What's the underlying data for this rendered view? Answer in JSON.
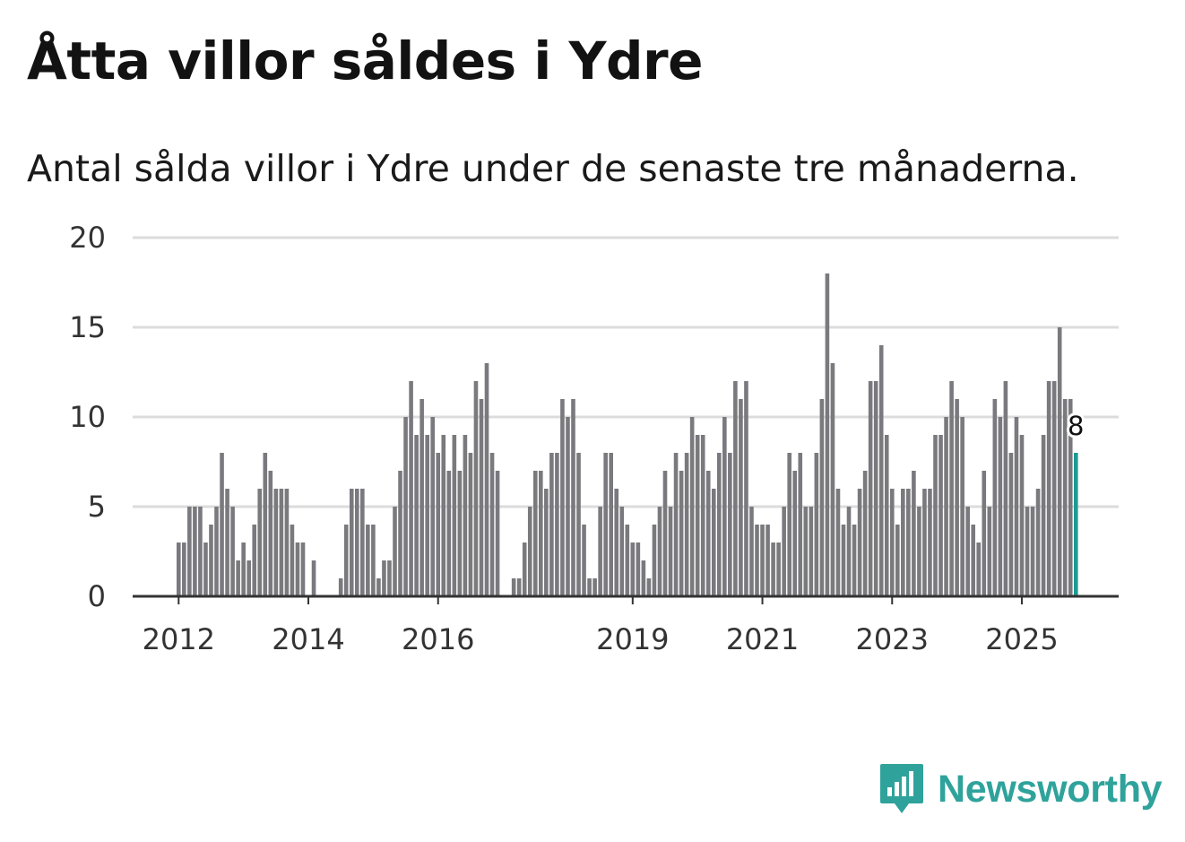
{
  "header": {
    "title": "Åtta villor såldes i Ydre",
    "subtitle": "Antal sålda villor i Ydre under de senaste tre månaderna."
  },
  "brand": {
    "name": "Newsworthy",
    "color": "#2fa39b"
  },
  "colors": {
    "bar": "#7a797e",
    "highlight": "#1a9b93",
    "grid": "#dcdcdc",
    "axis": "#333333"
  },
  "chart_data": {
    "type": "bar",
    "title": "Åtta villor såldes i Ydre",
    "subtitle": "Antal sålda villor i Ydre under de senaste tre månaderna.",
    "xlabel": "",
    "ylabel": "",
    "ylim": [
      0,
      20
    ],
    "yticks": [
      "0",
      "5",
      "10",
      "15",
      "20"
    ],
    "xticks": [
      {
        "label": "2012",
        "index": 0
      },
      {
        "label": "2014",
        "index": 24
      },
      {
        "label": "2016",
        "index": 48
      },
      {
        "label": "2019",
        "index": 84
      },
      {
        "label": "2021",
        "index": 108
      },
      {
        "label": "2023",
        "index": 132
      },
      {
        "label": "2025",
        "index": 156
      }
    ],
    "grid": true,
    "start": "2012-01",
    "frequency": "monthly",
    "values": [
      3,
      3,
      5,
      5,
      5,
      3,
      4,
      5,
      8,
      6,
      5,
      2,
      3,
      2,
      4,
      6,
      8,
      7,
      6,
      6,
      6,
      4,
      3,
      3,
      0,
      2,
      0,
      0,
      0,
      0,
      1,
      4,
      6,
      6,
      6,
      4,
      4,
      1,
      2,
      2,
      5,
      7,
      10,
      12,
      9,
      11,
      9,
      10,
      8,
      9,
      7,
      9,
      7,
      9,
      8,
      12,
      11,
      13,
      8,
      7,
      0,
      0,
      1,
      1,
      3,
      5,
      7,
      7,
      6,
      8,
      8,
      11,
      10,
      11,
      8,
      4,
      1,
      1,
      5,
      8,
      8,
      6,
      5,
      4,
      3,
      3,
      2,
      1,
      4,
      5,
      7,
      5,
      8,
      7,
      8,
      10,
      9,
      9,
      7,
      6,
      8,
      10,
      8,
      12,
      11,
      12,
      5,
      4,
      4,
      4,
      3,
      3,
      5,
      8,
      7,
      8,
      5,
      5,
      8,
      11,
      18,
      13,
      6,
      4,
      5,
      4,
      6,
      7,
      12,
      12,
      14,
      9,
      6,
      4,
      6,
      6,
      7,
      5,
      6,
      6,
      9,
      9,
      10,
      12,
      11,
      10,
      5,
      4,
      3,
      7,
      5,
      11,
      10,
      12,
      8,
      10,
      9,
      5,
      5,
      6,
      9,
      12,
      12,
      15,
      11,
      11,
      8
    ],
    "highlight_index": 166,
    "highlight_label": "8"
  }
}
